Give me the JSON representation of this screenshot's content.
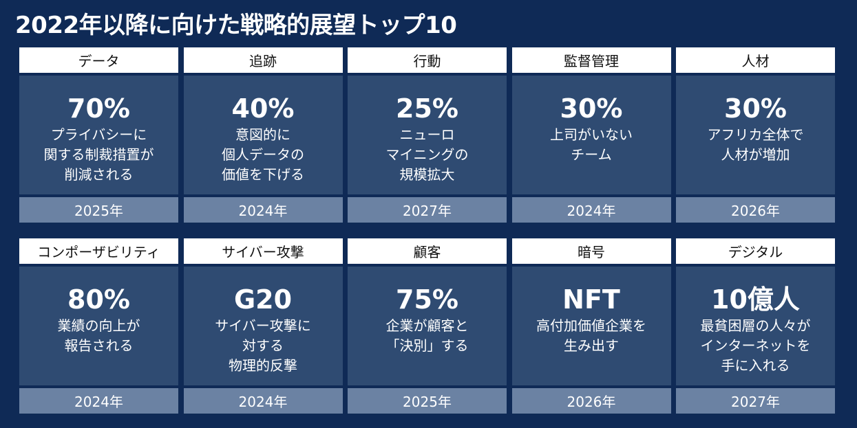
{
  "title": "2022年以降に向けた戦略的展望トップ10",
  "cards": [
    {
      "category": "データ",
      "stat": "70%",
      "lines": [
        "プライバシーに",
        "関する制裁措置が",
        "削減される"
      ],
      "year": "2025年"
    },
    {
      "category": "追跡",
      "stat": "40%",
      "lines": [
        "意図的に",
        "個人データの",
        "価値を下げる"
      ],
      "year": "2024年"
    },
    {
      "category": "行動",
      "stat": "25%",
      "lines": [
        "ニューロ",
        "マイニングの",
        "規模拡大"
      ],
      "year": "2027年"
    },
    {
      "category": "監督管理",
      "stat": "30%",
      "lines": [
        "上司がいない",
        "チーム"
      ],
      "year": "2024年"
    },
    {
      "category": "人材",
      "stat": "30%",
      "lines": [
        "アフリカ全体で",
        "人材が増加"
      ],
      "year": "2026年"
    },
    {
      "category": "コンポーザビリティ",
      "stat": "80%",
      "lines": [
        "業績の向上が",
        "報告される"
      ],
      "year": "2024年"
    },
    {
      "category": "サイバー攻撃",
      "stat": "G20",
      "lines": [
        "サイバー攻撃に",
        "対する",
        "物理的反撃"
      ],
      "year": "2024年"
    },
    {
      "category": "顧客",
      "stat": "75%",
      "lines": [
        "企業が顧客と",
        "「決別」する"
      ],
      "year": "2025年"
    },
    {
      "category": "暗号",
      "stat": "NFT",
      "lines": [
        "高付加価値企業を",
        "生み出す"
      ],
      "year": "2026年"
    },
    {
      "category": "デジタル",
      "stat": "10億人",
      "lines": [
        "最貧困層の人々が",
        "インターネットを",
        "手に入れる"
      ],
      "year": "2027年"
    }
  ]
}
